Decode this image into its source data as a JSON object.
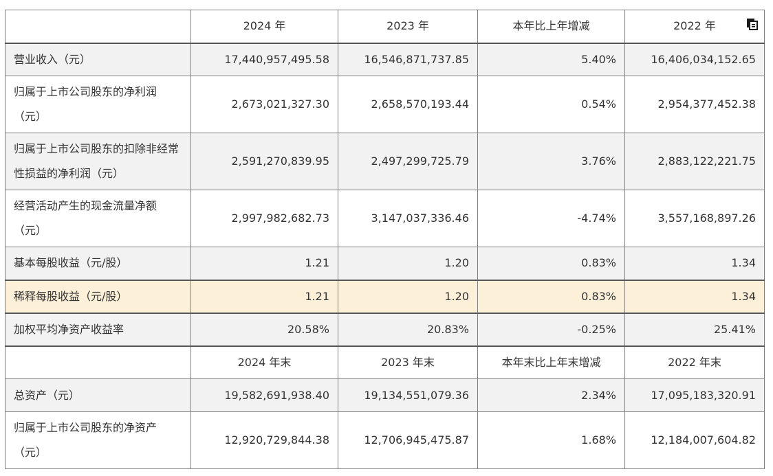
{
  "header": [
    "",
    "2024 年",
    "2023 年",
    "本年比上年增减",
    "2022 年"
  ],
  "rows": [
    {
      "label": "营业收入（元）",
      "v2024": "17,440,957,495.58",
      "v2023": "16,546,871,737.85",
      "change": "5.40%",
      "v2022": "16,406,034,152.65"
    },
    {
      "label": "归属于上市公司股东的净利润（元）",
      "v2024": "2,673,021,327.30",
      "v2023": "2,658,570,193.44",
      "change": "0.54%",
      "v2022": "2,954,377,452.38"
    },
    {
      "label": "归属于上市公司股东的扣除非经常性损益的净利润（元）",
      "v2024": "2,591,270,839.95",
      "v2023": "2,497,299,725.79",
      "change": "3.76%",
      "v2022": "2,883,122,221.75"
    },
    {
      "label": "经营活动产生的现金流量净额（元）",
      "v2024": "2,997,982,682.73",
      "v2023": "3,147,037,336.46",
      "change": "-4.74%",
      "v2022": "3,557,168,897.26"
    },
    {
      "label": "基本每股收益（元/股）",
      "v2024": "1.21",
      "v2023": "1.20",
      "change": "0.83%",
      "v2022": "1.34"
    },
    {
      "label": "稀释每股收益（元/股）",
      "v2024": "1.21",
      "v2023": "1.20",
      "change": "0.83%",
      "v2022": "1.34"
    },
    {
      "label": "加权平均净资产收益率",
      "v2024": "20.58%",
      "v2023": "20.83%",
      "change": "-0.25%",
      "v2022": "25.41%"
    }
  ],
  "header2": [
    "",
    "2024 年末",
    "2023 年末",
    "本年末比上年末增减",
    "2022 年末"
  ],
  "rows2": [
    {
      "label": "总资产（元）",
      "v2024": "19,582,691,938.40",
      "v2023": "19,134,551,079.36",
      "change": "2.34%",
      "v2022": "17,095,183,320.91"
    },
    {
      "label": "归属于上市公司股东的净资产（元）",
      "v2024": "12,920,729,844.38",
      "v2023": "12,706,945,475.87",
      "change": "1.68%",
      "v2022": "12,184,007,604.82"
    }
  ],
  "icons": {
    "copy": "copy-icon"
  },
  "colors": {
    "row_grey": "#f2f2f2",
    "row_highlight": "#fdf0d9",
    "border": "#7f7f7f"
  }
}
